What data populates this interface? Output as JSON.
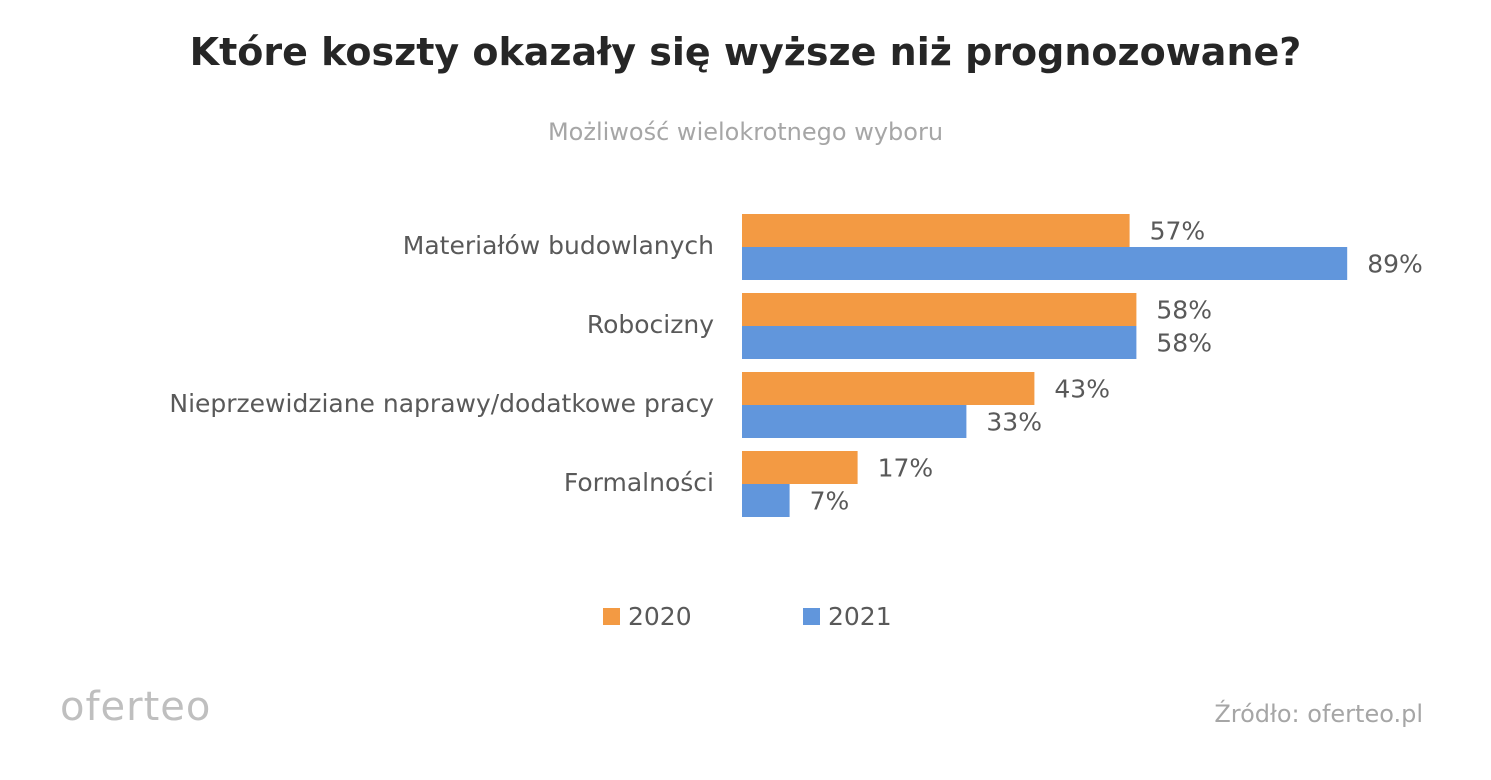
{
  "header": {
    "title": "Które koszty okazały się wyższe niż prognozowane?",
    "subtitle": "Możliwość wielokrotnego wyboru"
  },
  "chart_data": {
    "type": "bar",
    "orientation": "horizontal",
    "title": "Które koszty okazały się wyższe niż prognozowane?",
    "subtitle": "Możliwość wielokrotnego wyboru",
    "categories": [
      "Materiałów budowlanych",
      "Robocizny",
      "Nieprzewidziane naprawy/dodatkowe pracy",
      "Formalności"
    ],
    "series": [
      {
        "name": "2020",
        "color": "#f39a43",
        "values": [
          57,
          58,
          43,
          17
        ]
      },
      {
        "name": "2021",
        "color": "#6196dc",
        "values": [
          89,
          58,
          33,
          7
        ]
      }
    ],
    "value_suffix": "%",
    "xlim": [
      0,
      100
    ],
    "grid": false,
    "legend_position": "bottom"
  },
  "legend": {
    "items": [
      {
        "label": "2020",
        "color": "#f39a43"
      },
      {
        "label": "2021",
        "color": "#6196dc"
      }
    ]
  },
  "footer": {
    "logo": "oferteo",
    "source": "Źródło: oferteo.pl"
  }
}
